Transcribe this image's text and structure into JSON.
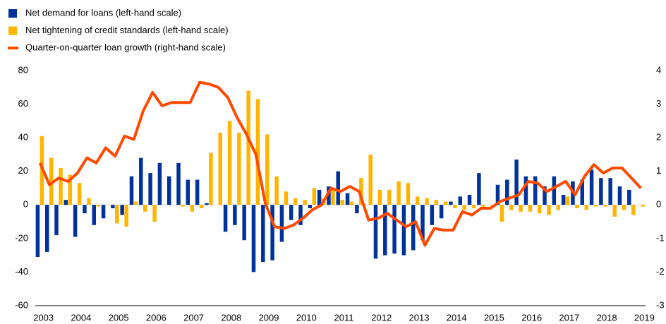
{
  "chart_data": {
    "type": "bar",
    "categories": [
      "2003",
      null,
      null,
      null,
      "2004",
      null,
      null,
      null,
      "2005",
      null,
      null,
      null,
      "2006",
      null,
      null,
      null,
      "2007",
      null,
      null,
      null,
      "2008",
      null,
      null,
      null,
      "2009",
      null,
      null,
      null,
      "2010",
      null,
      null,
      null,
      "2011",
      null,
      null,
      null,
      "2012",
      null,
      null,
      null,
      "2013",
      null,
      null,
      null,
      "2014",
      null,
      null,
      null,
      "2015",
      null,
      null,
      null,
      "2016",
      null,
      null,
      null,
      "2017",
      null,
      null,
      null,
      "2018",
      null,
      null,
      null,
      "2019"
    ],
    "series": [
      {
        "name": "Net demand for loans (left-hand scale)",
        "color": "#003299",
        "type": "bar",
        "values": [
          -31,
          -28,
          -18,
          3,
          -19,
          -5,
          -12,
          -8,
          -2,
          -6,
          17,
          28,
          19,
          25,
          17,
          25,
          15,
          15,
          1,
          0,
          -16,
          -12,
          -21,
          -40,
          -34,
          -33,
          -22,
          -9,
          -12,
          -2,
          9,
          11,
          20,
          7,
          -5,
          0,
          -32,
          -30,
          -29,
          -30,
          -27,
          -21,
          -12,
          -8,
          2,
          5,
          6,
          19,
          0,
          12,
          15,
          27,
          17,
          17,
          11,
          17,
          6,
          14,
          15,
          21,
          16,
          16,
          11,
          9,
          0
        ]
      },
      {
        "name": "Net tightening of credit standards (left-hand scale)",
        "color": "#ffb400",
        "type": "bar",
        "values": [
          41,
          28,
          22,
          18,
          13,
          4,
          -1,
          0,
          -11,
          -13,
          2,
          -4,
          -10,
          0,
          0,
          -1,
          -4,
          -2,
          31,
          43,
          50,
          43,
          68,
          63,
          42,
          17,
          8,
          4,
          3,
          10,
          4,
          10,
          3,
          2,
          16,
          30,
          9,
          9,
          14,
          13,
          5,
          4,
          3,
          2,
          -2,
          -3,
          -2,
          -1,
          -1,
          -10,
          -3,
          -4,
          -4,
          -5,
          -6,
          -3,
          5,
          -2,
          -3,
          -1,
          -1,
          -7,
          -3,
          -6,
          -1
        ]
      },
      {
        "name": "Quarter-on-quarter loan growth (right-hand scale)",
        "color": "#ff4b00",
        "type": "line",
        "axis": "y2",
        "values": [
          1.25,
          0.6,
          0.8,
          0.7,
          0.95,
          1.4,
          1.25,
          1.7,
          1.45,
          2.05,
          1.95,
          2.8,
          3.35,
          2.95,
          3.05,
          3.05,
          3.05,
          3.65,
          3.6,
          3.5,
          3.2,
          2.6,
          2.1,
          1.5,
          0.05,
          -0.65,
          -0.7,
          -0.6,
          -0.4,
          -0.15,
          0,
          0.5,
          0.4,
          0.55,
          0.4,
          -0.45,
          -0.4,
          -0.25,
          -0.45,
          -0.65,
          -0.5,
          -1.2,
          -0.7,
          -0.75,
          -0.75,
          -0.2,
          -0.3,
          -0.1,
          -0.1,
          0.1,
          0.2,
          0.3,
          0.7,
          0.65,
          0.4,
          0.55,
          0.7,
          0.3,
          0.85,
          1.2,
          0.95,
          1.1,
          1.1,
          0.8,
          0.5
        ]
      }
    ],
    "ylim": [
      -60,
      80
    ],
    "yticks": [
      -60,
      -40,
      -20,
      0,
      20,
      40,
      60,
      80
    ],
    "y2lim": [
      -3,
      4
    ],
    "y2ticks": [
      -3,
      -2,
      -1,
      0,
      1,
      2,
      3,
      4
    ],
    "legend": "top-left"
  }
}
